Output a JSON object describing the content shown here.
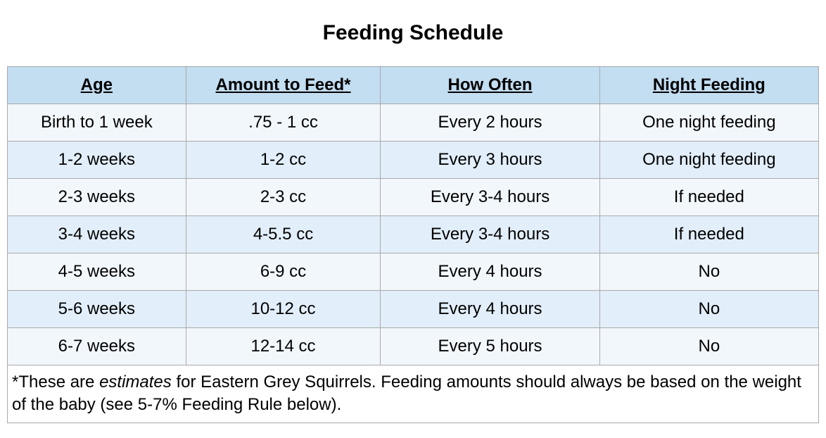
{
  "title": "Feeding Schedule",
  "table": {
    "type": "table",
    "colors": {
      "header_bg": "#c3ddf1",
      "band_a_bg": "#f2f7fc",
      "band_b_bg": "#e2eef9",
      "border": "#aaaaaa",
      "text": "#000000",
      "page_bg": "#ffffff"
    },
    "fonts": {
      "title_size_pt": 30,
      "title_weight": "bold",
      "header_size_pt": 24,
      "header_weight": "bold",
      "header_underline": true,
      "cell_size_pt": 24,
      "footnote_size_pt": 22
    },
    "column_widths_pct": [
      22,
      24,
      27,
      27
    ],
    "columns": [
      {
        "label": "Age"
      },
      {
        "label": "Amount to Feed*"
      },
      {
        "label": "How Often"
      },
      {
        "label": "Night Feeding"
      }
    ],
    "rows": [
      {
        "band": "a",
        "cells": [
          "Birth to 1 week",
          ".75 - 1 cc",
          "Every 2 hours",
          "One night feeding"
        ]
      },
      {
        "band": "b",
        "cells": [
          "1-2 weeks",
          "1-2 cc",
          "Every 3 hours",
          "One night feeding"
        ]
      },
      {
        "band": "a",
        "cells": [
          "2-3 weeks",
          "2-3 cc",
          "Every 3-4 hours",
          "If needed"
        ]
      },
      {
        "band": "b",
        "cells": [
          "3-4 weeks",
          "4-5.5 cc",
          "Every 3-4 hours",
          "If needed"
        ]
      },
      {
        "band": "a",
        "cells": [
          "4-5 weeks",
          "6-9 cc",
          "Every 4 hours",
          "No"
        ]
      },
      {
        "band": "b",
        "cells": [
          "5-6 weeks",
          "10-12 cc",
          "Every 4 hours",
          "No"
        ]
      },
      {
        "band": "a",
        "cells": [
          "6-7 weeks",
          "12-14 cc",
          "Every 5 hours",
          "No"
        ]
      }
    ],
    "footnote": {
      "prefix": "*These are ",
      "italic": "estimates",
      "suffix": " for Eastern Grey Squirrels. Feeding amounts should always be based on the weight of the baby (see 5-7% Feeding Rule below)."
    }
  }
}
